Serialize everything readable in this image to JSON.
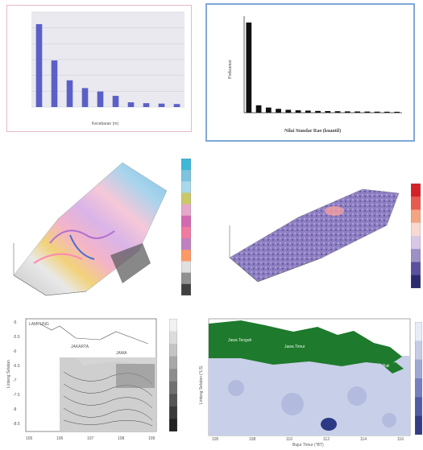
{
  "chart_data": [
    {
      "type": "bar",
      "panel": "top-left",
      "ylabel": "",
      "xlabel": "Kecebaran (m)",
      "values": [
        960,
        540,
        310,
        220,
        180,
        130,
        55,
        45,
        40,
        35
      ],
      "ylim": [
        0,
        1100
      ],
      "series_color": "#5b5fc7"
    },
    {
      "type": "bar",
      "panel": "top-right",
      "ylabel": "Frekuensi",
      "xlabel": "Nilai Standar Rao (kuantil)",
      "values": [
        2800,
        230,
        160,
        120,
        90,
        75,
        65,
        55,
        50,
        45,
        40,
        38,
        35,
        32,
        30,
        28
      ],
      "ylim": [
        0,
        3000
      ],
      "series_color": "#111111"
    }
  ],
  "colorbars": {
    "mid_left": [
      "#3fb7d8",
      "#7ec3e0",
      "#a8d8ea",
      "#c9c96a",
      "#e6a8c8",
      "#d36ab0",
      "#f07aa0",
      "#c080c0",
      "#ff9966",
      "#e0e0e0",
      "#909090",
      "#404040"
    ],
    "mid_right": [
      "#d62027",
      "#e85a4f",
      "#f4a582",
      "#f7d9d0",
      "#d8c8e8",
      "#9e8fc6",
      "#5a4fa0",
      "#2c2a6e"
    ],
    "bottom_left": [
      "#f2f2f2",
      "#dcdcdc",
      "#c4c4c4",
      "#a8a8a8",
      "#8c8c8c",
      "#707070",
      "#555555",
      "#3a3a3a",
      "#222222"
    ],
    "bottom_right": [
      "#e8ecf6",
      "#c4cce6",
      "#9ea8d4",
      "#7680bd",
      "#525ca4",
      "#343c84"
    ]
  },
  "maps": {
    "bottom_left": {
      "ylabel": "Lintang Selatan",
      "xticks": [
        "105",
        "106",
        "107",
        "108",
        "109"
      ],
      "yticks": [
        "-5",
        "-5.5",
        "-6",
        "-6.5",
        "-7",
        "-7.5",
        "-8",
        "-8.5"
      ],
      "labels": [
        "LAMPUNG",
        "JAKARTA",
        "JAWA"
      ]
    },
    "bottom_right": {
      "xlabel": "Bujur Timur (°BT)",
      "ylabel": "Lintang Selatan (°LS)",
      "xticks": [
        "105",
        "108",
        "110",
        "112",
        "114",
        "116"
      ],
      "labels": [
        "Jawa Tengah",
        "Jawa Timur",
        "Bali"
      ]
    }
  }
}
